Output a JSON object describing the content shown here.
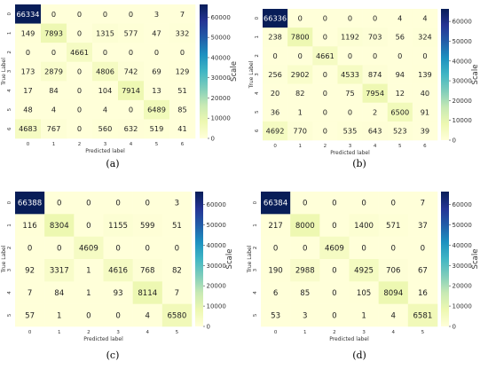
{
  "chart_data": [
    {
      "type": "heatmap",
      "panel_label": "(a)",
      "xlabel": "Predicted label",
      "ylabel": "True Label",
      "x_ticks": [
        "0",
        "1",
        "2",
        "3",
        "4",
        "5",
        "6"
      ],
      "y_ticks": [
        "0",
        "1",
        "2",
        "3",
        "4",
        "5",
        "6"
      ],
      "matrix": [
        [
          66334,
          0,
          0,
          0,
          0,
          3,
          7
        ],
        [
          149,
          7893,
          0,
          1315,
          577,
          47,
          332
        ],
        [
          0,
          0,
          4661,
          0,
          0,
          0,
          0
        ],
        [
          173,
          2879,
          0,
          4806,
          742,
          69,
          129
        ],
        [
          17,
          84,
          0,
          104,
          7914,
          13,
          51
        ],
        [
          48,
          4,
          0,
          4,
          0,
          6489,
          85
        ],
        [
          4683,
          767,
          0,
          560,
          632,
          519,
          41
        ]
      ],
      "colorbar": {
        "label": "Scale",
        "ticks": [
          "0",
          "10000",
          "20000",
          "30000",
          "40000",
          "50000",
          "60000"
        ],
        "range": [
          0,
          66334
        ]
      }
    },
    {
      "type": "heatmap",
      "panel_label": "(b)",
      "xlabel": "Predicted label",
      "ylabel": "True Label",
      "x_ticks": [
        "0",
        "1",
        "2",
        "3",
        "4",
        "5",
        "6"
      ],
      "y_ticks": [
        "0",
        "1",
        "2",
        "3",
        "4",
        "5",
        "6"
      ],
      "matrix": [
        [
          66336,
          0,
          0,
          0,
          0,
          4,
          4
        ],
        [
          238,
          7800,
          0,
          1192,
          703,
          56,
          324
        ],
        [
          0,
          0,
          4661,
          0,
          0,
          0,
          0
        ],
        [
          256,
          2902,
          0,
          4533,
          874,
          94,
          139
        ],
        [
          20,
          82,
          0,
          75,
          7954,
          12,
          40
        ],
        [
          36,
          1,
          0,
          0,
          2,
          6500,
          91
        ],
        [
          4692,
          770,
          0,
          535,
          643,
          523,
          39
        ]
      ],
      "colorbar": {
        "label": "Scale",
        "ticks": [
          "0",
          "10000",
          "20000",
          "30000",
          "40000",
          "50000",
          "60000"
        ],
        "range": [
          0,
          66336
        ]
      }
    },
    {
      "type": "heatmap",
      "panel_label": "(c)",
      "xlabel": "Predicted label",
      "ylabel": "True Label",
      "x_ticks": [
        "0",
        "1",
        "2",
        "3",
        "4",
        "5"
      ],
      "y_ticks": [
        "0",
        "1",
        "2",
        "3",
        "4",
        "5"
      ],
      "matrix": [
        [
          66388,
          0,
          0,
          0,
          0,
          3
        ],
        [
          116,
          8304,
          0,
          1155,
          599,
          51
        ],
        [
          0,
          0,
          4609,
          0,
          0,
          0
        ],
        [
          92,
          3317,
          1,
          4616,
          768,
          82
        ],
        [
          7,
          84,
          1,
          93,
          8114,
          7
        ],
        [
          57,
          1,
          0,
          0,
          4,
          6580
        ]
      ],
      "colorbar": {
        "label": "Scale",
        "ticks": [
          "0",
          "10000",
          "20000",
          "30000",
          "40000",
          "50000",
          "60000"
        ],
        "range": [
          0,
          66388
        ]
      }
    },
    {
      "type": "heatmap",
      "panel_label": "(d)",
      "xlabel": "Predicted label",
      "ylabel": "True Label",
      "x_ticks": [
        "0",
        "1",
        "2",
        "3",
        "4",
        "5"
      ],
      "y_ticks": [
        "0",
        "1",
        "2",
        "3",
        "4",
        "5"
      ],
      "matrix": [
        [
          66384,
          0,
          0,
          0,
          0,
          7
        ],
        [
          217,
          8000,
          0,
          1400,
          571,
          37
        ],
        [
          0,
          0,
          4609,
          0,
          0,
          0
        ],
        [
          190,
          2988,
          0,
          4925,
          706,
          67
        ],
        [
          6,
          85,
          0,
          105,
          8094,
          16
        ],
        [
          53,
          3,
          0,
          1,
          4,
          6581
        ]
      ],
      "colorbar": {
        "label": "Scale",
        "ticks": [
          "0",
          "10000",
          "20000",
          "30000",
          "40000",
          "50000",
          "60000"
        ],
        "range": [
          0,
          66384
        ]
      }
    }
  ],
  "colors": {
    "low": "#ffffd9",
    "ramp": [
      "#ffffd9",
      "#edf8b1",
      "#c7e9b4",
      "#7fcdbb",
      "#41b6c4",
      "#1d91c0",
      "#225ea8",
      "#253494",
      "#081d58"
    ]
  }
}
